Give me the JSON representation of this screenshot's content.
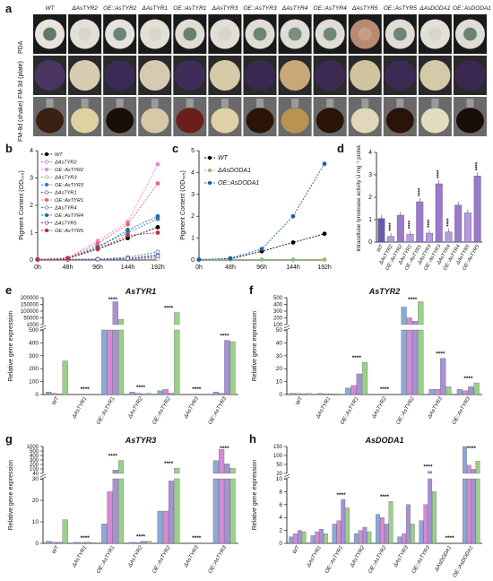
{
  "panels": {
    "a": "a",
    "b": "b",
    "c": "c",
    "d": "d",
    "e": "e",
    "f": "f",
    "g": "g",
    "h": "h"
  },
  "photo_grid": {
    "columns": [
      "WT",
      "ΔAsTYR2",
      "OE::AsTYR2",
      "ΔAsTYR1",
      "OE::AsTYR1",
      "ΔAsTYR3",
      "OE::AsTYR3",
      "ΔAsTYR4",
      "OE::AsTYR4",
      "ΔAsTYR5",
      "OE::AsTYR5",
      "ΔAsDODA1",
      "OE::AsDODA1"
    ],
    "rows": [
      "PDA",
      "FM-3d (plate)",
      "FM-8d (shake)"
    ],
    "colors": {
      "PDA_edge": [
        "#e8e4dc",
        "#e2e0d6",
        "#e5e2da",
        "#e2e0d6",
        "#e0ddd4",
        "#e2e0d6",
        "#e0ddd4",
        "#e0ddd4",
        "#e0ddd4",
        "#b88a72",
        "#e0ddd4",
        "#e2e0d6",
        "#e0ddd4"
      ],
      "PDA_center": [
        "#5f7a6a",
        "#d8d6cc",
        "#6b8478",
        "#d8d6cc",
        "#68806e",
        "#d8d6cc",
        "#6e8474",
        "#7a8e80",
        "#70867a",
        "#c69e86",
        "#6f8578",
        "#d8d6cc",
        "#6c8276"
      ],
      "FM3d": [
        "#4a3560",
        "#d8cdb0",
        "#3a2a55",
        "#d6cbb0",
        "#3e2d58",
        "#d6c9a8",
        "#3a2850",
        "#c8a878",
        "#3c2a52",
        "#d0c3a0",
        "#3c2a54",
        "#d4c9a8",
        "#3a2850"
      ],
      "FM8d": [
        "#3a2010",
        "#e0d2a0",
        "#1a0f08",
        "#d8c8a8",
        "#6a1f1a",
        "#e0d0a8",
        "#2a1408",
        "#b89450",
        "#2a1408",
        "#e0d8b8",
        "#2a1408",
        "#e4dcc0",
        "#1a0f08"
      ]
    }
  },
  "chart_data": [
    {
      "panel": "b",
      "type": "line",
      "categories": [
        "0h",
        "48h",
        "96h",
        "144h",
        "192h"
      ],
      "ylabel": "Pigment Content (OD₅₂₅)",
      "ylim": [
        0,
        4
      ],
      "yticks": [
        0,
        1,
        2,
        3,
        4
      ],
      "series": [
        {
          "name": "WT",
          "color": "#000000",
          "marker": "circle",
          "values": [
            0.02,
            0.05,
            0.4,
            0.8,
            1.2
          ]
        },
        {
          "name": "ΔAsTYR2",
          "color": "#8a6bbf",
          "marker": "open",
          "values": [
            0.02,
            0.02,
            0.03,
            0.05,
            0.1
          ]
        },
        {
          "name": "OE::AsTYR2",
          "color": "#e48ad8",
          "marker": "circle",
          "values": [
            0.02,
            0.08,
            0.7,
            1.4,
            3.5
          ]
        },
        {
          "name": "ΔAsTYR3",
          "color": "#7cc06a",
          "marker": "open",
          "values": [
            0.02,
            0.02,
            0.02,
            0.03,
            0.05
          ]
        },
        {
          "name": "OE::AsTYR3",
          "color": "#3a7fc0",
          "marker": "circle",
          "values": [
            0.02,
            0.06,
            0.5,
            1.0,
            1.5
          ]
        },
        {
          "name": "ΔAsTYR1",
          "color": "#7a4ab8",
          "marker": "open",
          "values": [
            0.02,
            0.02,
            0.03,
            0.05,
            0.2
          ]
        },
        {
          "name": "OE::AsTYR1",
          "color": "#e8647a",
          "marker": "circle",
          "values": [
            0.02,
            0.07,
            0.6,
            1.3,
            2.8
          ]
        },
        {
          "name": "ΔAsTYR4",
          "color": "#2a8a9a",
          "marker": "open",
          "values": [
            0.02,
            0.02,
            0.03,
            0.1,
            0.3
          ]
        },
        {
          "name": "OE::AsTYR4",
          "color": "#1f6fa0",
          "marker": "circle",
          "values": [
            0.02,
            0.06,
            0.45,
            1.1,
            1.6
          ]
        },
        {
          "name": "ΔAsTYR5",
          "color": "#6a3aa0",
          "marker": "open",
          "values": [
            0.02,
            0.02,
            0.03,
            0.05,
            0.15
          ]
        },
        {
          "name": "OE::AsTYR5",
          "color": "#c03040",
          "marker": "circle",
          "values": [
            0.02,
            0.06,
            0.4,
            0.9,
            1.0
          ]
        }
      ]
    },
    {
      "panel": "c",
      "type": "line",
      "categories": [
        "0h",
        "48h",
        "96h",
        "144h",
        "192h"
      ],
      "ylabel": "Pigment Content (OD₅₂₅)",
      "ylim": [
        0,
        5
      ],
      "yticks": [
        0,
        1,
        2,
        3,
        4,
        5
      ],
      "series": [
        {
          "name": "WT",
          "color": "#000000",
          "marker": "circle",
          "values": [
            0.02,
            0.05,
            0.4,
            0.8,
            1.2
          ]
        },
        {
          "name": "ΔAsDODA1",
          "color": "#8cc070",
          "marker": "circle",
          "values": [
            0.02,
            0.02,
            0.02,
            0.02,
            0.02
          ]
        },
        {
          "name": "OE::AsDODA1",
          "color": "#1f5fa0",
          "marker": "circle",
          "values": [
            0.02,
            0.08,
            0.5,
            2.0,
            4.4
          ]
        }
      ]
    },
    {
      "panel": "d",
      "type": "bar",
      "ylabel": "Intracellular tyrosinase activity U mg⁻¹ protein",
      "ylim": [
        0,
        4
      ],
      "yticks": [
        0,
        1,
        2,
        3,
        4
      ],
      "categories": [
        "WT",
        "ΔAsTYR2",
        "OE::AsTYR2",
        "ΔAsTYR1",
        "OE::AsTYR1",
        "ΔAsTYR3",
        "OE::AsTYR3",
        "ΔAsTYR4",
        "OE::AsTYR4",
        "ΔAsTYR5",
        "OE::AsTYR5"
      ],
      "values": [
        1.05,
        0.25,
        1.2,
        0.35,
        1.8,
        0.4,
        2.6,
        0.45,
        1.65,
        1.3,
        2.95
      ],
      "stars": [
        "",
        "****",
        "",
        "****",
        "****",
        "****",
        "****",
        "****",
        "",
        "",
        "****"
      ]
    },
    {
      "panel": "e",
      "type": "bar",
      "title": "AsTYR1",
      "ylabel": "Relative gene expression",
      "yticks_lower": [
        "0",
        "100",
        "200",
        "300",
        "400",
        "500"
      ],
      "yticks_upper": [
        "1000",
        "50000",
        "100000",
        "150000",
        "200000"
      ],
      "groups": [
        "WT",
        "ΔAsTYR1",
        "OE::AsTYR1",
        "ΔAsTYR2",
        "OE::AsTYR2",
        "ΔAsTYR3",
        "OE::AsTYR3"
      ],
      "bar_colors": [
        "#8aa8d8",
        "#d68ad6",
        "#a890d8",
        "#9ad08a"
      ],
      "values": [
        [
          20,
          10,
          5,
          260
        ],
        [
          0,
          0,
          0,
          0
        ],
        [
          600,
          800,
          170000,
          40000
        ],
        [
          20,
          10,
          5,
          10
        ],
        [
          30,
          40,
          10,
          90000
        ],
        [
          0,
          0,
          0,
          0
        ],
        [
          20,
          10,
          420,
          410
        ]
      ],
      "stars": [
        "",
        "****",
        "****",
        "****",
        "****",
        "****",
        "****"
      ]
    },
    {
      "panel": "f",
      "type": "bar",
      "title": "AsTYR2",
      "ylabel": "Relative gene expression",
      "yticks_lower": [
        "0",
        "10",
        "20",
        "30",
        "40",
        "50"
      ],
      "yticks_upper": [
        "100",
        "200",
        "300",
        "400",
        "500"
      ],
      "groups": [
        "WT",
        "ΔAsTYR1",
        "OE::AsTYR1",
        "ΔAsTYR2",
        "OE::AsTYR2",
        "ΔAsTYR3",
        "OE::AsTYR3"
      ],
      "bar_colors": [
        "#8aa8d8",
        "#d68ad6",
        "#a890d8",
        "#9ad08a"
      ],
      "values": [
        [
          1,
          0.8,
          0.6,
          0.8
        ],
        [
          0.8,
          0.5,
          0.6,
          0.6
        ],
        [
          5,
          7,
          16,
          25
        ],
        [
          0,
          0,
          0,
          0
        ],
        [
          360,
          200,
          150,
          440
        ],
        [
          4,
          4,
          28,
          6
        ],
        [
          4,
          3,
          6,
          9
        ]
      ],
      "stars": [
        "",
        "",
        "****",
        "****",
        "****",
        "****",
        "****"
      ]
    },
    {
      "panel": "g",
      "type": "bar",
      "title": "AsTYR3",
      "ylabel": "Relative gene expression",
      "yticks_lower": [
        "0",
        "10",
        "20",
        "30"
      ],
      "yticks_upper": [
        "40",
        "100",
        "200",
        "300",
        "400",
        "500",
        "1000"
      ],
      "groups": [
        "WT",
        "ΔAsTYR1",
        "OE::AsTYR1",
        "ΔAsTYR2",
        "OE::AsTYR2",
        "ΔAsTYR3",
        "OE::AsTYR3"
      ],
      "bar_colors": [
        "#8aa8d8",
        "#d68ad6",
        "#a890d8",
        "#9ad08a"
      ],
      "values": [
        [
          1,
          0.6,
          0.5,
          11
        ],
        [
          0.5,
          0.4,
          0.5,
          0.4
        ],
        [
          9,
          24,
          160,
          500
        ],
        [
          0.5,
          0.4,
          1,
          1
        ],
        [
          15,
          15,
          29,
          230
        ],
        [
          0,
          0,
          0,
          0
        ],
        [
          500,
          900,
          380,
          220
        ]
      ],
      "stars": [
        "",
        "****",
        "****",
        "****",
        "****",
        "****",
        "****"
      ]
    },
    {
      "panel": "h",
      "type": "bar",
      "title": "AsDODA1",
      "ylabel": "Relative gene expression",
      "yticks_lower": [
        "0",
        "2",
        "4",
        "6",
        "8",
        "10"
      ],
      "yticks_upper": [
        "20",
        "50",
        "100",
        "150"
      ],
      "groups": [
        "WT",
        "ΔAsTYR1",
        "OE::AsTYR1",
        "ΔAsTYR2",
        "OE::AsTYR2",
        "ΔAsTYR3",
        "OE::AsTYR3",
        "ΔAsDODA1",
        "OE::AsDODA1"
      ],
      "bar_colors": [
        "#8aa8d8",
        "#d68ad6",
        "#a890d8",
        "#9ad08a"
      ],
      "values": [
        [
          1,
          1.5,
          2,
          1.8
        ],
        [
          1.2,
          1.8,
          2.2,
          1.5
        ],
        [
          3,
          3.5,
          6.8,
          5.5
        ],
        [
          1.5,
          2,
          2.5,
          1.8
        ],
        [
          4.5,
          4,
          3,
          6.5
        ],
        [
          1,
          1.5,
          6,
          3
        ],
        [
          3.5,
          6,
          30,
          8
        ],
        [
          0,
          0,
          0,
          0
        ],
        [
          150,
          60,
          40,
          80
        ]
      ],
      "stars": [
        "",
        "",
        "****",
        "",
        "****",
        "",
        "****",
        "****",
        "****"
      ]
    }
  ]
}
